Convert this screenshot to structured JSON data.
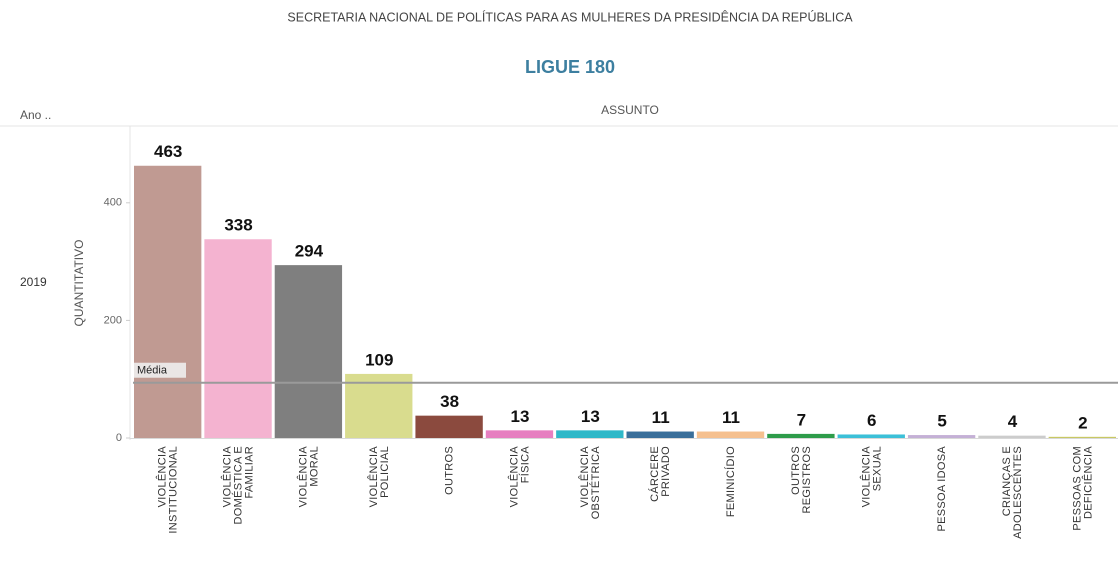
{
  "header": {
    "title": "SECRETARIA NACIONAL DE POLÍTICAS PARA AS MULHERES DA PRESIDÊNCIA DA REPÚBLICA",
    "subtitle": "LIGUE 180"
  },
  "chart_data": {
    "type": "bar",
    "row_header": "Ano ..",
    "row_value": "2019",
    "column_header": "ASSUNTO",
    "y_label": "QUANTITATIVO",
    "categories": [
      "VIOLÊNCIA\nINSTITUCIONAL",
      "VIOLÊNCIA\nDOMÉSTICA E\nFAMILIAR",
      "VIOLÊNCIA\nMORAL",
      "VIOLÊNCIA\nPOLICIAL",
      "OUTROS",
      "VIOLÊNCIA\nFÍSICA",
      "VIOLÊNCIA\nOBSTÉTRICA",
      "CÁRCERE\nPRIVADO",
      "FEMINICÍDIO",
      "OUTROS\nREGISTROS",
      "VIOLÊNCIA\nSEXUAL",
      "PESSOA IDOSA",
      "CRIANÇAS E\nADOLESCENTES",
      "PESSOAS COM\nDEFICIÊNCIA"
    ],
    "values": [
      463,
      338,
      294,
      109,
      38,
      13,
      13,
      11,
      11,
      7,
      6,
      5,
      4,
      2
    ],
    "colors": [
      "#c09a92",
      "#f4b3d0",
      "#7f7f7f",
      "#d9dc8e",
      "#8b4a3e",
      "#e67fc0",
      "#2eb8c8",
      "#3a6f9a",
      "#f5c08f",
      "#2e9c4a",
      "#3cc0d8",
      "#c4b0d6",
      "#cccccc",
      "#c8c864"
    ],
    "ylim": [
      0,
      500
    ],
    "yticks": [
      0,
      200,
      400
    ],
    "reference_line": {
      "label": "Média",
      "value": 94
    }
  }
}
